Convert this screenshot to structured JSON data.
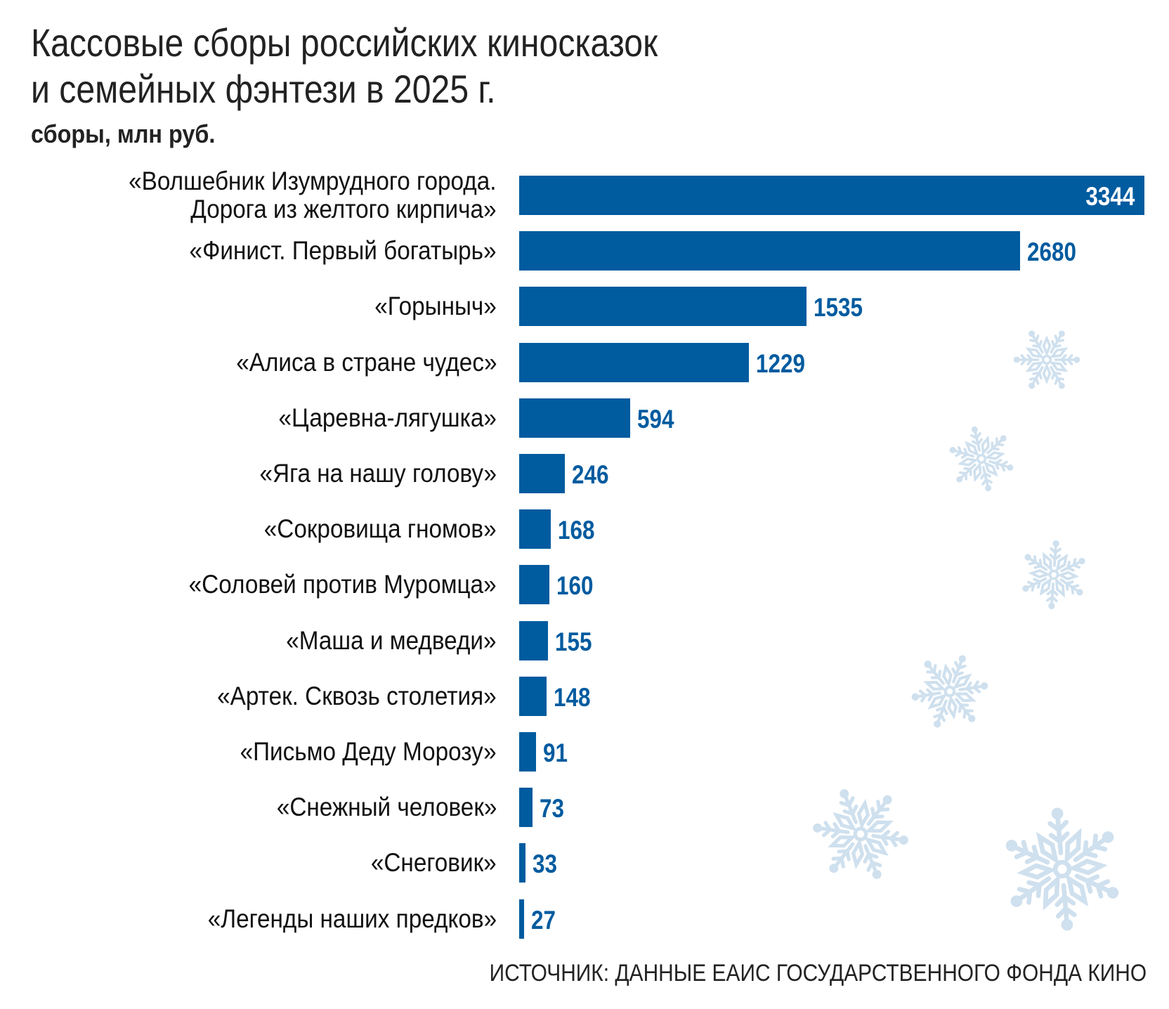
{
  "chart_data": {
    "type": "bar",
    "orientation": "horizontal",
    "title": "Кассовые сборы российских киносказок и семейных фэнтези в 2025 г.",
    "title_lines": [
      "Кассовые сборы российских киносказок",
      "и семейных фэнтези в 2025 г."
    ],
    "subtitle": "сборы, млн руб.",
    "categories": [
      "«Волшебник Изумрудного города. Дорога из желтого кирпича»",
      "«Финист. Первый богатырь»",
      "«Горыныч»",
      "«Алиса в стране чудес»",
      "«Царевна-лягушка»",
      "«Яга на нашу голову»",
      "«Сокровища гномов»",
      "«Соловей против Муромца»",
      "«Маша и медведи»",
      "«Артек. Сквозь столетия»",
      "«Письмо Деду Морозу»",
      "«Снежный человек»",
      "«Снеговик»",
      "«Легенды наших предков»"
    ],
    "category_lines": [
      [
        "«Волшебник Изумрудного города.",
        "Дорога из желтого кирпича»"
      ]
    ],
    "values": [
      3344,
      2680,
      1535,
      1229,
      594,
      246,
      168,
      160,
      155,
      148,
      91,
      73,
      33,
      27
    ],
    "xlim": [
      0,
      3344
    ],
    "grid": false,
    "bar_color": "#005b9f",
    "decoration_color": "#cfe0ee",
    "source": "ИСТОЧНИК: ДАННЫЕ ЕАИС ГОСУДАРСТВЕННОГО ФОНДА КИНО"
  }
}
